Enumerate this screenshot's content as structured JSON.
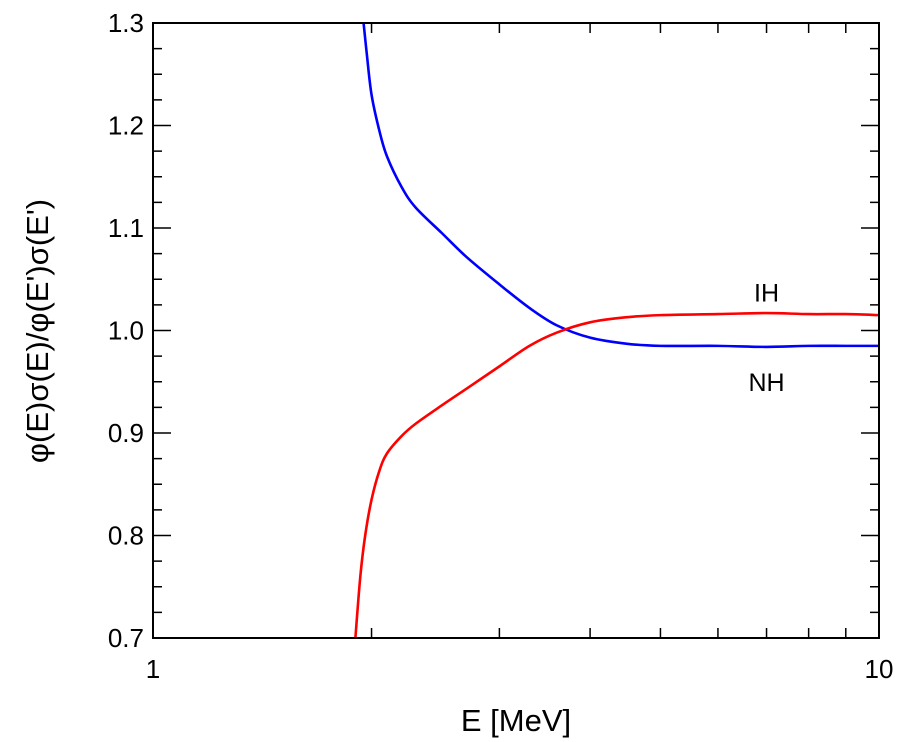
{
  "chart_data": {
    "type": "line",
    "xlabel": "E [MeV]",
    "ylabel": "φ(E)σ(E)/φ(E')σ(E')",
    "xscale": "log",
    "xlim": [
      1,
      10
    ],
    "ylim": [
      0.7,
      1.3
    ],
    "xticks": [
      1,
      10
    ],
    "xtick_labels": [
      "1",
      "10"
    ],
    "x_minor_ticks": [
      2,
      3,
      4,
      5,
      6,
      7,
      8,
      9
    ],
    "yticks": [
      0.7,
      0.8,
      0.9,
      1.0,
      1.1,
      1.2,
      1.3
    ],
    "ytick_labels": [
      "0.7",
      "0.8",
      "0.9",
      "1.0",
      "1.1",
      "1.2",
      "1.3"
    ],
    "y_minor_step": 0.025,
    "grid": false,
    "series": [
      {
        "name": "NH",
        "color": "#0000ff",
        "x": [
          1.95,
          1.97,
          2.0,
          2.05,
          2.1,
          2.2,
          2.3,
          2.5,
          2.7,
          3.0,
          3.3,
          3.6,
          4.0,
          4.5,
          5.0,
          6.0,
          7.0,
          8.0,
          9.0,
          10.0
        ],
        "y": [
          1.3,
          1.27,
          1.23,
          1.195,
          1.17,
          1.14,
          1.12,
          1.095,
          1.072,
          1.045,
          1.022,
          1.005,
          0.993,
          0.987,
          0.985,
          0.985,
          0.984,
          0.985,
          0.985,
          0.985
        ]
      },
      {
        "name": "IH",
        "color": "#ff0000",
        "x": [
          1.9,
          1.93,
          1.96,
          2.0,
          2.05,
          2.1,
          2.2,
          2.3,
          2.5,
          2.7,
          3.0,
          3.3,
          3.6,
          4.0,
          4.5,
          5.0,
          6.0,
          7.0,
          8.0,
          9.0,
          10.0
        ],
        "y": [
          0.7,
          0.76,
          0.8,
          0.835,
          0.863,
          0.88,
          0.897,
          0.909,
          0.927,
          0.943,
          0.965,
          0.985,
          0.998,
          1.008,
          1.013,
          1.015,
          1.016,
          1.017,
          1.016,
          1.016,
          1.015
        ]
      }
    ],
    "annotations": [
      {
        "text": "IH",
        "x": 7.0,
        "y": 1.037
      },
      {
        "text": "NH",
        "x": 7.0,
        "y": 0.95
      }
    ]
  }
}
